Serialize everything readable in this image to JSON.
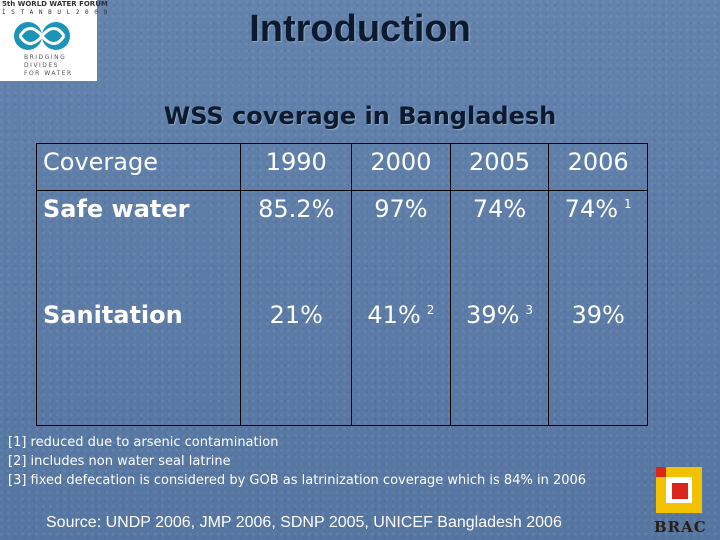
{
  "logo": {
    "line1": "5th WORLD WATER FORUM",
    "line2": "İ S T A N B U L 2 0 0 9",
    "tagline": [
      "BRIDGING",
      "DIVIDES",
      "FOR WATER"
    ]
  },
  "title": "Introduction",
  "subtitle": "WSS coverage in Bangladesh",
  "table": {
    "header": [
      "Coverage",
      "1990",
      "2000",
      "2005",
      "2006"
    ],
    "rows": [
      {
        "label": "Safe water",
        "cells": [
          "85.2%",
          "97%",
          "74%",
          "74%"
        ],
        "sups": [
          "",
          "",
          "",
          "1"
        ]
      },
      {
        "label": "Sanitation",
        "cells": [
          "21%",
          "41%",
          "39%",
          "39%"
        ],
        "sups": [
          "",
          "2",
          "3",
          ""
        ]
      }
    ]
  },
  "footnotes": [
    "[1] reduced due to arsenic contamination",
    "[2] includes non water seal latrine",
    "[3] fixed defecation is considered by GOB as latrinization coverage which is  84% in 2006"
  ],
  "source": "Source: UNDP 2006, JMP 2006, SDNP 2005, UNICEF Bangladesh 2006",
  "brac_logo": {
    "text": "BRAC",
    "colors": {
      "outer": "#f2c200",
      "inner": "#d8261c"
    }
  }
}
